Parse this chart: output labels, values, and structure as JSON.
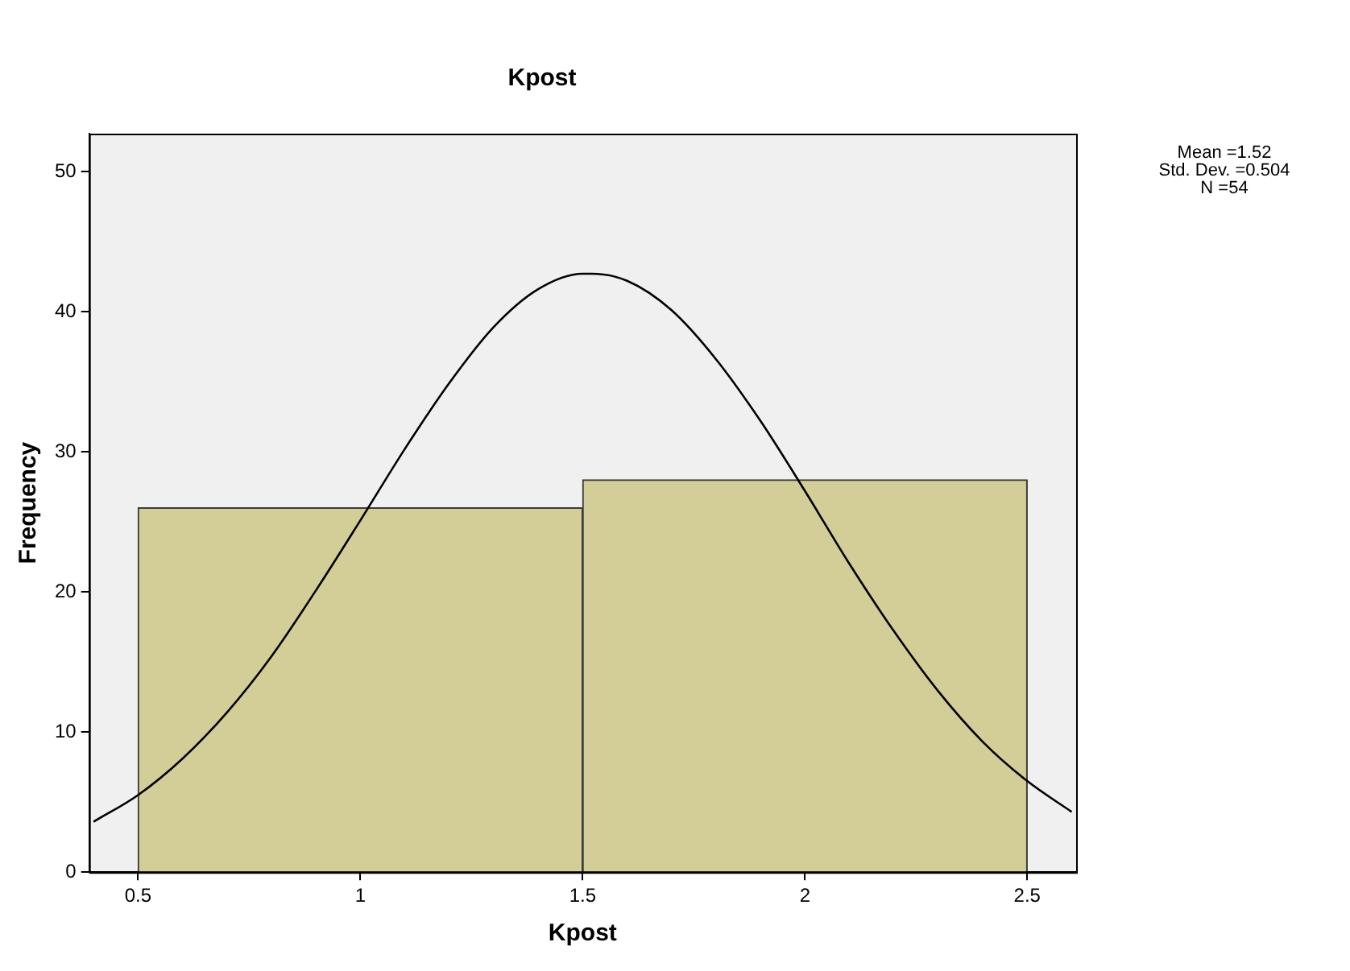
{
  "chart_data": {
    "type": "histogram",
    "title": "Kpost",
    "xlabel": "Kpost",
    "ylabel": "Frequency",
    "annotations": [
      "Mean =1.52",
      "Std. Dev. =0.504",
      "N =54"
    ],
    "bins": [
      0.5,
      1.5,
      2.5
    ],
    "values": [
      26,
      28
    ],
    "color": "#d3ce97",
    "series": [
      {
        "type": "line",
        "color": "#000000",
        "x": [
          0.4,
          0.5,
          0.6,
          0.7,
          0.8,
          0.9,
          1.0,
          1.1,
          1.2,
          1.3,
          1.4,
          1.5,
          1.52,
          1.6,
          1.7,
          1.8,
          1.9,
          2.0,
          2.1,
          2.2,
          2.3,
          2.4,
          2.5,
          2.6
        ],
        "values": [
          3.6,
          5.5,
          8.1,
          11.4,
          15.4,
          20.1,
          25.1,
          30.2,
          34.9,
          38.9,
          41.6,
          42.7,
          42.7,
          42.2,
          40.1,
          36.6,
          32.2,
          27.2,
          22.0,
          17.2,
          12.9,
          9.3,
          6.5,
          4.3
        ]
      }
    ],
    "xlim": [
      0.39,
      2.61
    ],
    "ylim": [
      0,
      52.7
    ],
    "xticks": [
      0.5,
      1,
      1.5,
      2,
      2.5
    ],
    "yticks": [
      0,
      10,
      20,
      30,
      40,
      50
    ],
    "grid": false,
    "legend": false
  }
}
